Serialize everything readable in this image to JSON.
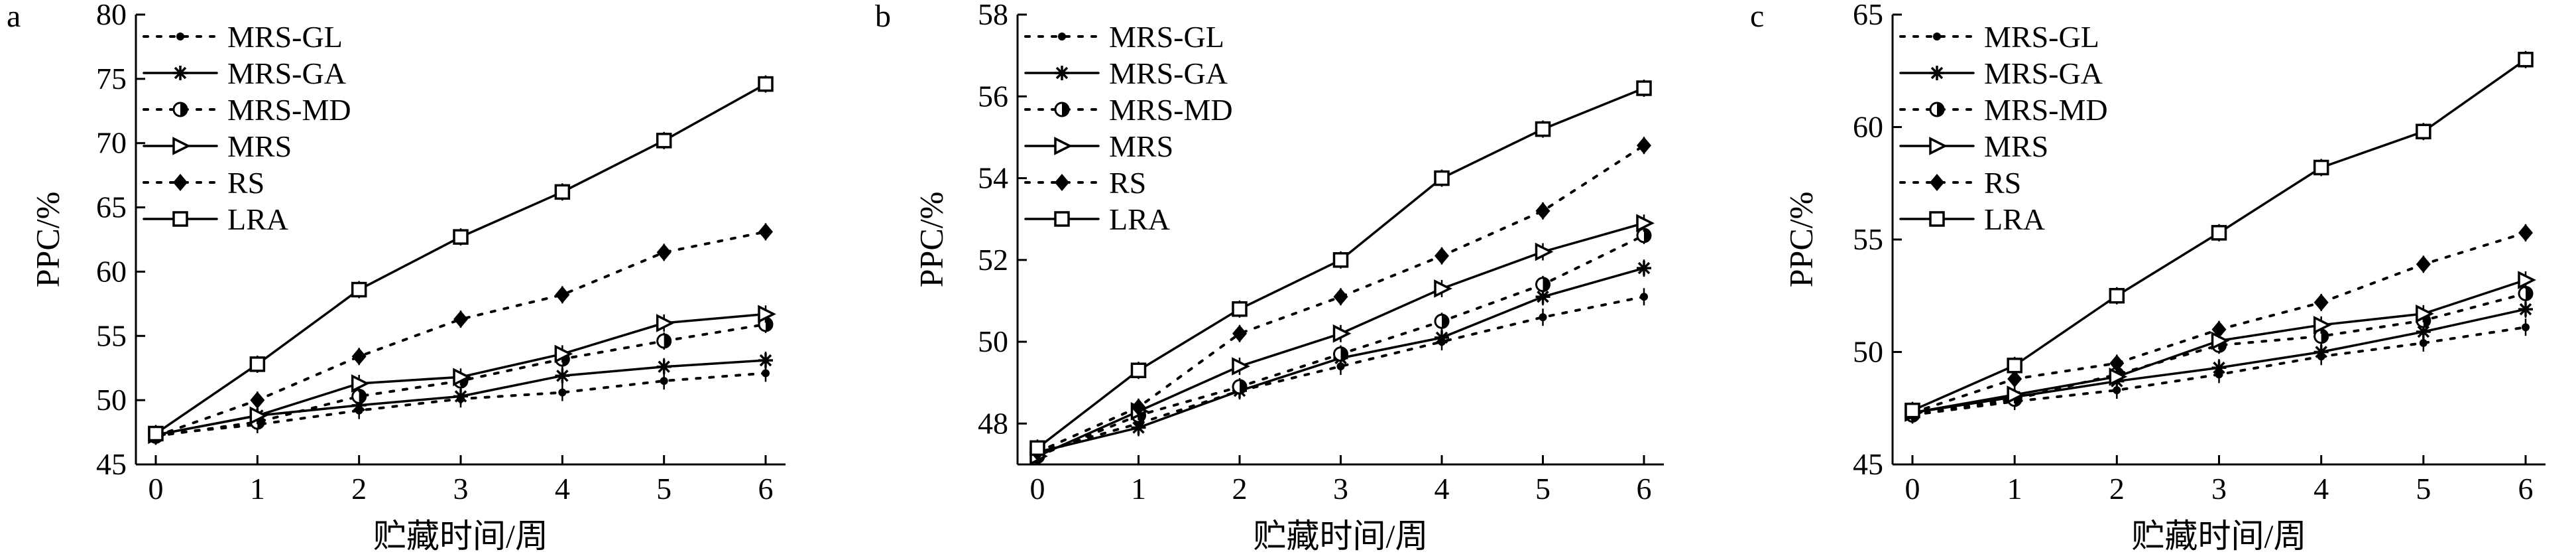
{
  "chart_data": [
    {
      "type": "line",
      "panel_label": "a",
      "xlabel": "贮藏时间/周",
      "ylabel": "PPC/%",
      "x": [
        0,
        1,
        2,
        3,
        4,
        5,
        6
      ],
      "xlim": [
        0,
        6
      ],
      "ylim": [
        45,
        80
      ],
      "yticks": [
        45,
        50,
        55,
        60,
        65,
        70,
        75,
        80
      ],
      "grid": false,
      "legend_position": "top-left",
      "series": [
        {
          "name": "MRS-GL",
          "values": [
            47.3,
            48.1,
            49.2,
            50.1,
            50.6,
            51.5,
            52.1
          ]
        },
        {
          "name": "MRS-GA",
          "values": [
            47.3,
            48.8,
            49.6,
            50.3,
            51.9,
            52.6,
            53.1
          ]
        },
        {
          "name": "MRS-MD",
          "values": [
            47.2,
            48.3,
            50.3,
            51.5,
            53.2,
            54.6,
            55.9
          ]
        },
        {
          "name": "MRS",
          "values": [
            47.3,
            48.8,
            51.3,
            51.8,
            53.6,
            56.0,
            56.7
          ]
        },
        {
          "name": "RS",
          "values": [
            47.2,
            50.0,
            53.4,
            56.3,
            58.2,
            61.5,
            63.1
          ]
        },
        {
          "name": "LRA",
          "values": [
            47.4,
            52.8,
            58.6,
            62.7,
            66.2,
            70.2,
            74.6
          ]
        }
      ]
    },
    {
      "type": "line",
      "panel_label": "b",
      "xlabel": "贮藏时间/周",
      "ylabel": "PPC/%",
      "x": [
        0,
        1,
        2,
        3,
        4,
        5,
        6
      ],
      "xlim": [
        0,
        6
      ],
      "ylim": [
        47,
        58
      ],
      "yticks": [
        48,
        50,
        52,
        54,
        56,
        58
      ],
      "grid": false,
      "legend_position": "top-left",
      "series": [
        {
          "name": "MRS-GL",
          "values": [
            47.3,
            48.0,
            48.8,
            49.4,
            50.0,
            50.6,
            51.1
          ]
        },
        {
          "name": "MRS-GA",
          "values": [
            47.3,
            47.9,
            48.8,
            49.6,
            50.1,
            51.1,
            51.8
          ]
        },
        {
          "name": "MRS-MD",
          "values": [
            47.2,
            48.2,
            48.9,
            49.7,
            50.5,
            51.4,
            52.6
          ]
        },
        {
          "name": "MRS",
          "values": [
            47.2,
            48.3,
            49.4,
            50.2,
            51.3,
            52.2,
            52.9
          ]
        },
        {
          "name": "RS",
          "values": [
            47.3,
            48.4,
            50.2,
            51.1,
            52.1,
            53.2,
            54.8
          ]
        },
        {
          "name": "LRA",
          "values": [
            47.4,
            49.3,
            50.8,
            52.0,
            54.0,
            55.2,
            56.2
          ]
        }
      ]
    },
    {
      "type": "line",
      "panel_label": "c",
      "xlabel": "贮藏时间/周",
      "ylabel": "PPC/%",
      "x": [
        0,
        1,
        2,
        3,
        4,
        5,
        6
      ],
      "xlim": [
        0,
        6
      ],
      "ylim": [
        45,
        65
      ],
      "yticks": [
        45,
        50,
        55,
        60,
        65
      ],
      "grid": false,
      "legend_position": "top-left",
      "series": [
        {
          "name": "MRS-GL",
          "values": [
            47.2,
            47.8,
            48.3,
            49.0,
            49.8,
            50.4,
            51.1
          ]
        },
        {
          "name": "MRS-GA",
          "values": [
            47.3,
            48.0,
            48.7,
            49.3,
            50.0,
            50.9,
            51.9
          ]
        },
        {
          "name": "MRS-MD",
          "values": [
            47.2,
            47.9,
            49.0,
            50.3,
            50.7,
            51.4,
            52.6
          ]
        },
        {
          "name": "MRS",
          "values": [
            47.3,
            48.1,
            48.9,
            50.5,
            51.2,
            51.7,
            53.2
          ]
        },
        {
          "name": "RS",
          "values": [
            47.3,
            48.8,
            49.5,
            51.0,
            52.2,
            53.9,
            55.3
          ]
        },
        {
          "name": "LRA",
          "values": [
            47.4,
            49.4,
            52.5,
            55.3,
            58.2,
            59.8,
            63.0
          ]
        }
      ]
    }
  ]
}
